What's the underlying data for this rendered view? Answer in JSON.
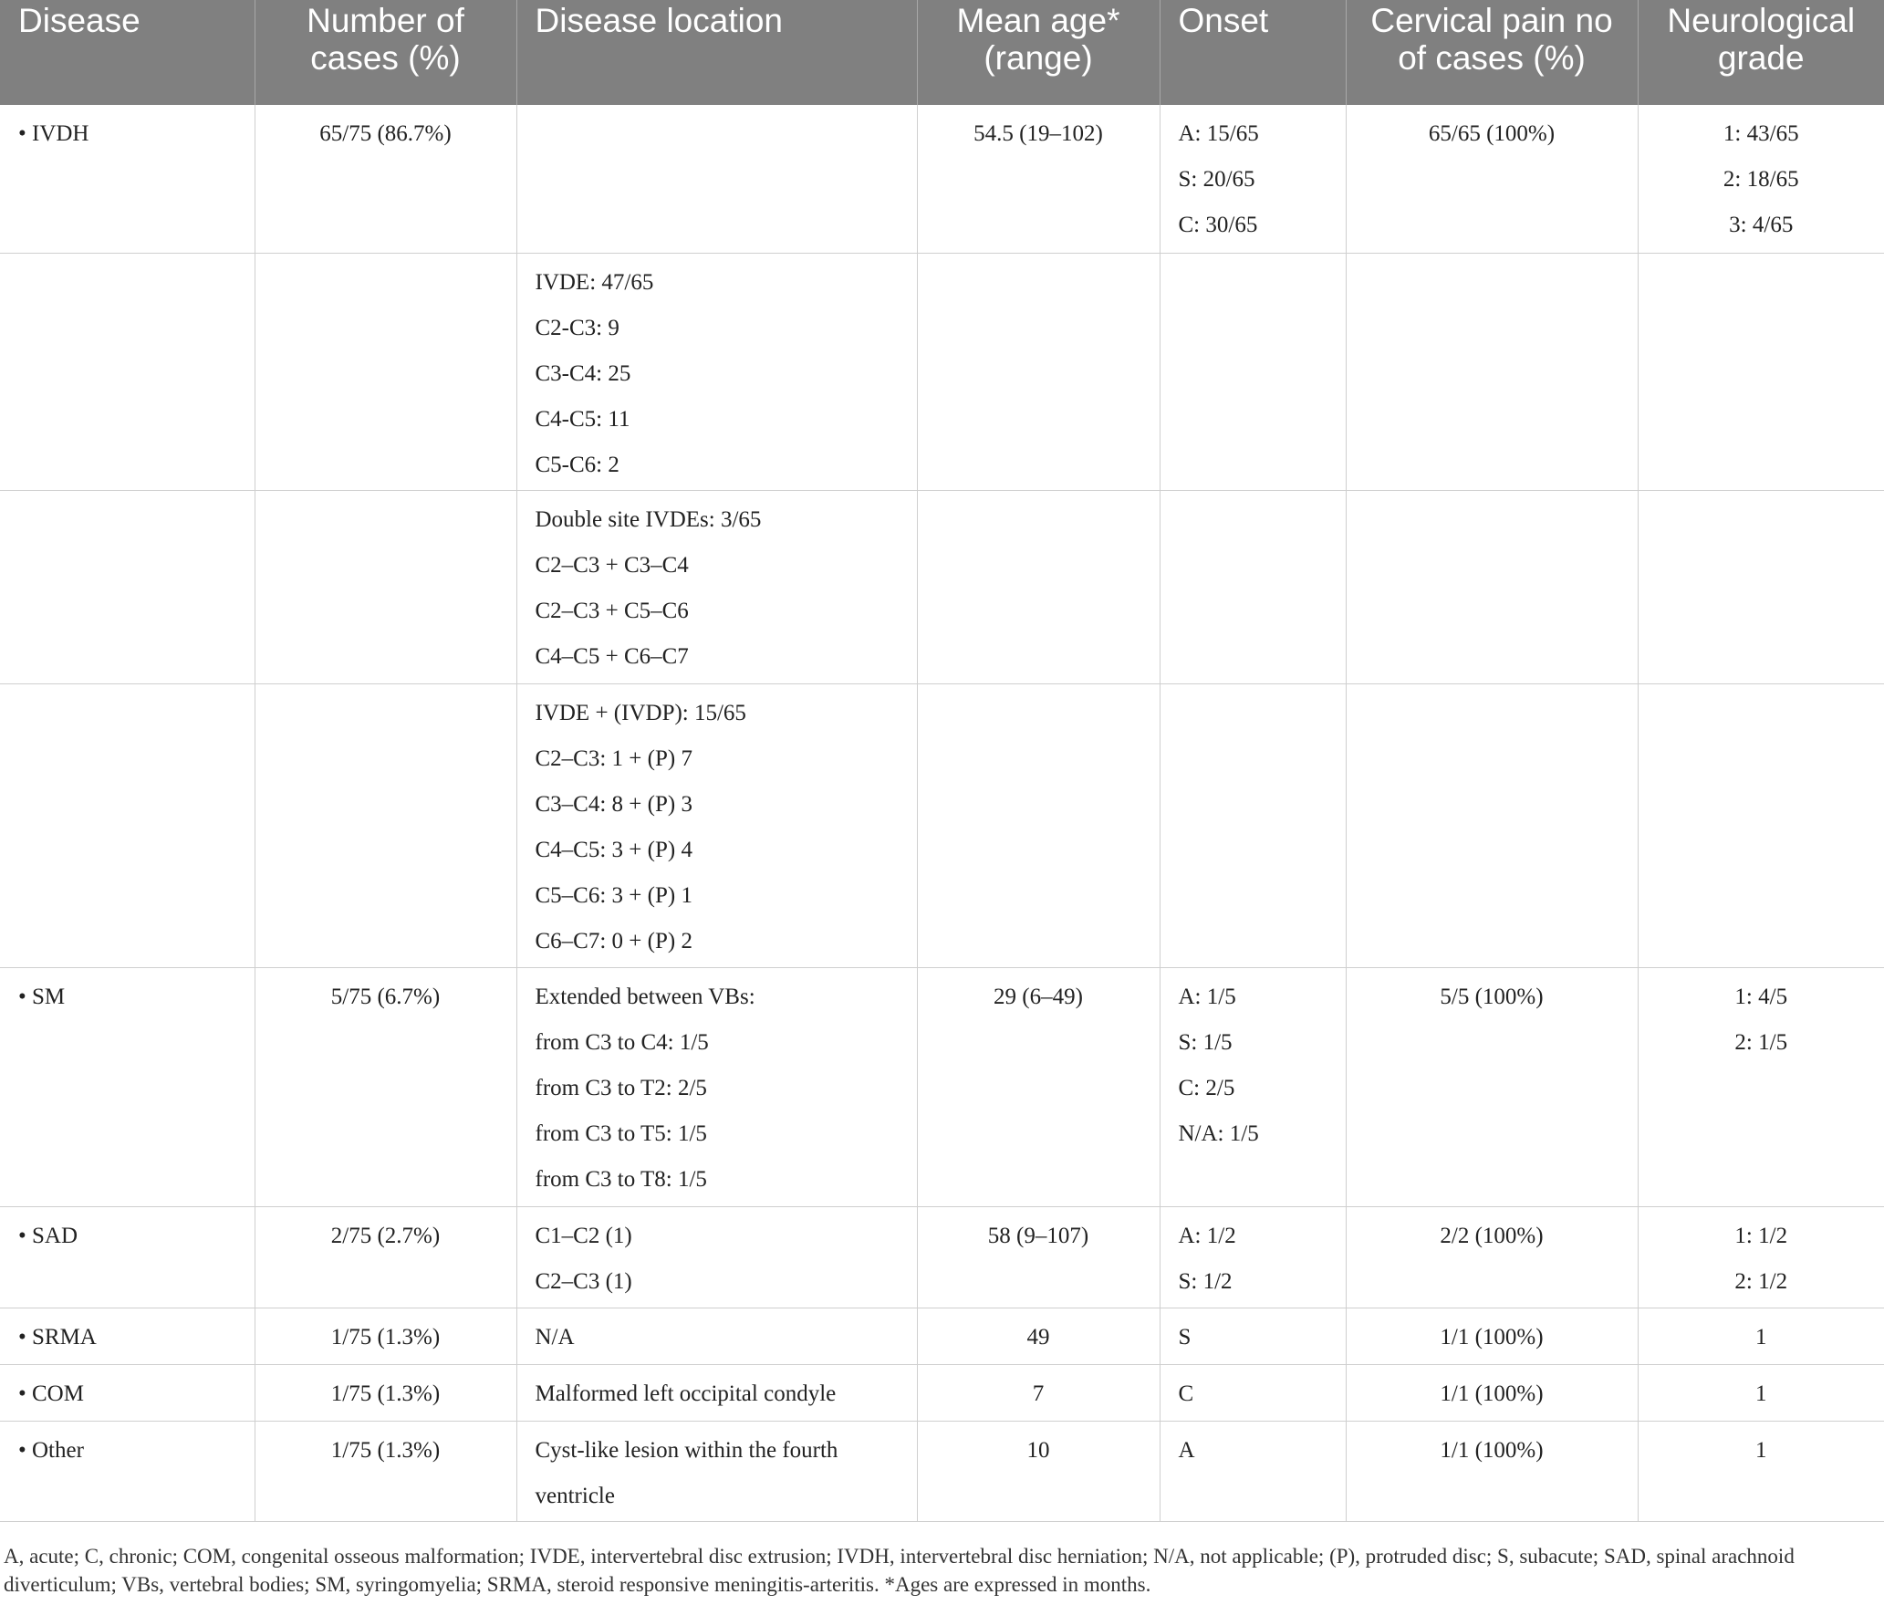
{
  "table": {
    "header": [
      [
        "Disease"
      ],
      [
        "Number of",
        "cases (%)"
      ],
      [
        "Disease location"
      ],
      [
        "Mean age*",
        "(range)"
      ],
      [
        "Onset"
      ],
      [
        "Cervical pain no",
        "of cases (%)"
      ],
      [
        "Neurological",
        "grade"
      ]
    ],
    "rows": [
      [
        [
          "• IVDH"
        ],
        [
          "65/75 (86.7%)"
        ],
        [],
        [
          "54.5 (19–102)"
        ],
        [
          "A: 15/65",
          "S: 20/65",
          "C: 30/65"
        ],
        [
          "65/65 (100%)"
        ],
        [
          "1: 43/65",
          "2: 18/65",
          "3: 4/65"
        ]
      ],
      [
        [],
        [],
        [
          "IVDE: 47/65",
          "C2-C3: 9",
          "C3-C4: 25",
          "C4-C5: 11",
          "C5-C6: 2"
        ],
        [],
        [],
        [],
        []
      ],
      [
        [],
        [],
        [
          "Double site IVDEs: 3/65",
          "C2–C3 + C3–C4",
          "C2–C3 + C5–C6",
          "C4–C5 + C6–C7"
        ],
        [],
        [],
        [],
        []
      ],
      [
        [],
        [],
        [
          "IVDE + (IVDP): 15/65",
          "C2–C3: 1 + (P) 7",
          "C3–C4: 8 + (P) 3",
          "C4–C5: 3 + (P) 4",
          "C5–C6: 3 + (P) 1",
          "C6–C7: 0 + (P) 2"
        ],
        [],
        [],
        [],
        []
      ],
      [
        [
          "• SM"
        ],
        [
          "5/75 (6.7%)"
        ],
        [
          "Extended between VBs:",
          "from C3 to C4: 1/5",
          "from C3 to T2: 2/5",
          "from C3 to T5: 1/5",
          "from C3 to T8: 1/5"
        ],
        [
          "29 (6–49)"
        ],
        [
          "A: 1/5",
          "S: 1/5",
          "C: 2/5",
          "N/A: 1/5"
        ],
        [
          "5/5 (100%)"
        ],
        [
          "1: 4/5",
          "2: 1/5"
        ]
      ],
      [
        [
          "• SAD"
        ],
        [
          "2/75 (2.7%)"
        ],
        [
          "C1–C2 (1)",
          "C2–C3 (1)"
        ],
        [
          "58 (9–107)"
        ],
        [
          "A: 1/2",
          "S: 1/2"
        ],
        [
          "2/2 (100%)"
        ],
        [
          "1: 1/2",
          "2: 1/2"
        ]
      ],
      [
        [
          "• SRMA"
        ],
        [
          "1/75 (1.3%)"
        ],
        [
          "N/A"
        ],
        [
          "49"
        ],
        [
          "S"
        ],
        [
          "1/1 (100%)"
        ],
        [
          "1"
        ]
      ],
      [
        [
          "• COM"
        ],
        [
          "1/75 (1.3%)"
        ],
        [
          "Malformed left occipital condyle"
        ],
        [
          "7"
        ],
        [
          "C"
        ],
        [
          "1/1 (100%)"
        ],
        [
          "1"
        ]
      ],
      [
        [
          "• Other"
        ],
        [
          "1/75 (1.3%)"
        ],
        [
          "Cyst-like lesion within the fourth",
          "ventricle"
        ],
        [
          "10"
        ],
        [
          "A"
        ],
        [
          "1/1 (100%)"
        ],
        [
          "1"
        ]
      ]
    ],
    "footnote": "A, acute; C, chronic; COM, congenital osseous malformation; IVDE, intervertebral disc extrusion; IVDH, intervertebral disc herniation; N/A, not applicable; (P), protruded disc; S, subacute; SAD, spinal arachnoid diverticulum; VBs, vertebral bodies; SM, syringomyelia; SRMA, steroid responsive meningitis-arteritis. *Ages are expressed in months."
  }
}
